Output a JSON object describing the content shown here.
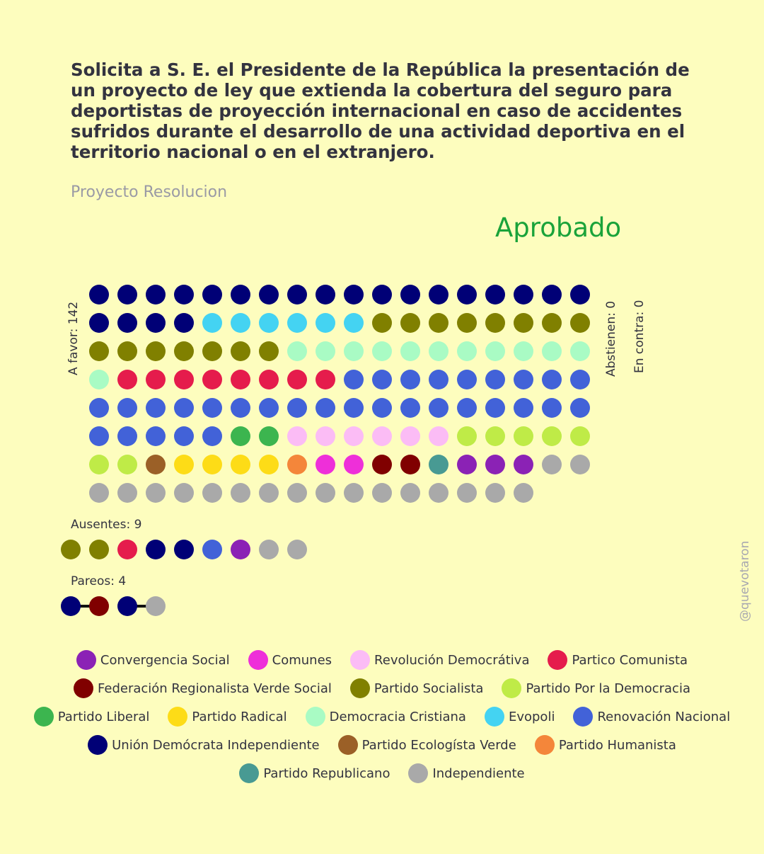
{
  "header": {
    "title": "Solicita a S. E. el Presidente de la República la presentación de un proyecto de ley que extienda la cobertura del seguro para deportistas de proyección internacional en caso de accidentes sufridos durante el desarrollo de una actividad deportiva en el territorio nacional o en el extranjero.",
    "subtitle": "Proyecto Resolucion",
    "result": "Aprobado",
    "result_color": "#1aa33a"
  },
  "labels": {
    "a_favor": "A favor: 142",
    "abstienen": "Abstienen: 0",
    "en_contra": "En contra: 0",
    "ausentes": "Ausentes: 9",
    "pareos": "Pareos: 4",
    "handle": "@quevotaron"
  },
  "parties": {
    "CS": {
      "name": "Convergencia Social",
      "color": "#8b22b5"
    },
    "COM": {
      "name": "Comunes",
      "color": "#ee2fd9"
    },
    "RD": {
      "name": "Revolución Democrátiva",
      "color": "#fbbcf5"
    },
    "PC": {
      "name": "Partico Comunista",
      "color": "#e51c4c"
    },
    "FRVS": {
      "name": "Federación Regionalista Verde Social",
      "color": "#800000"
    },
    "PS": {
      "name": "Partido Socialista",
      "color": "#808000"
    },
    "PPD": {
      "name": "Partido Por la Democracia",
      "color": "#bfeb47"
    },
    "PL": {
      "name": "Partido Liberal",
      "color": "#3cb54f"
    },
    "PR": {
      "name": "Partido Radical",
      "color": "#fddc17"
    },
    "DC": {
      "name": "Democracia Cristiana",
      "color": "#a9fbc4"
    },
    "EVO": {
      "name": "Evopoli",
      "color": "#44d3f2"
    },
    "RN": {
      "name": "Renovación Nacional",
      "color": "#4262d8"
    },
    "UDI": {
      "name": "Unión Demócrata Independiente",
      "color": "#000076"
    },
    "PEV": {
      "name": "Partido Ecologísta Verde",
      "color": "#9b6027"
    },
    "PH": {
      "name": "Partido Humanista",
      "color": "#f4863a"
    },
    "REP": {
      "name": "Partido Republicano",
      "color": "#489a93"
    },
    "IND": {
      "name": "Independiente",
      "color": "#a9a9a9"
    }
  },
  "legend_order": [
    "CS",
    "COM",
    "RD",
    "PC",
    "FRVS",
    "PS",
    "PPD",
    "PL",
    "PR",
    "DC",
    "EVO",
    "RN",
    "UDI",
    "PEV",
    "PH",
    "REP",
    "IND"
  ],
  "favor_votes": [
    {
      "party": "UDI",
      "count": 22
    },
    {
      "party": "EVO",
      "count": 6
    },
    {
      "party": "PS",
      "count": 15
    },
    {
      "party": "DC",
      "count": 12
    },
    {
      "party": "PC",
      "count": 8
    },
    {
      "party": "RN",
      "count": 32
    },
    {
      "party": "PL",
      "count": 2
    },
    {
      "party": "RD",
      "count": 6
    },
    {
      "party": "PPD",
      "count": 7
    },
    {
      "party": "PEV",
      "count": 1
    },
    {
      "party": "PR",
      "count": 4
    },
    {
      "party": "PH",
      "count": 1
    },
    {
      "party": "COM",
      "count": 2
    },
    {
      "party": "FRVS",
      "count": 2
    },
    {
      "party": "REP",
      "count": 1
    },
    {
      "party": "CS",
      "count": 3
    },
    {
      "party": "IND",
      "count": 18
    }
  ],
  "absent": [
    "PS",
    "PS",
    "PC",
    "UDI",
    "UDI",
    "RN",
    "CS",
    "IND",
    "IND"
  ],
  "pairs": [
    [
      "UDI",
      "FRVS"
    ],
    [
      "UDI",
      "IND"
    ]
  ]
}
